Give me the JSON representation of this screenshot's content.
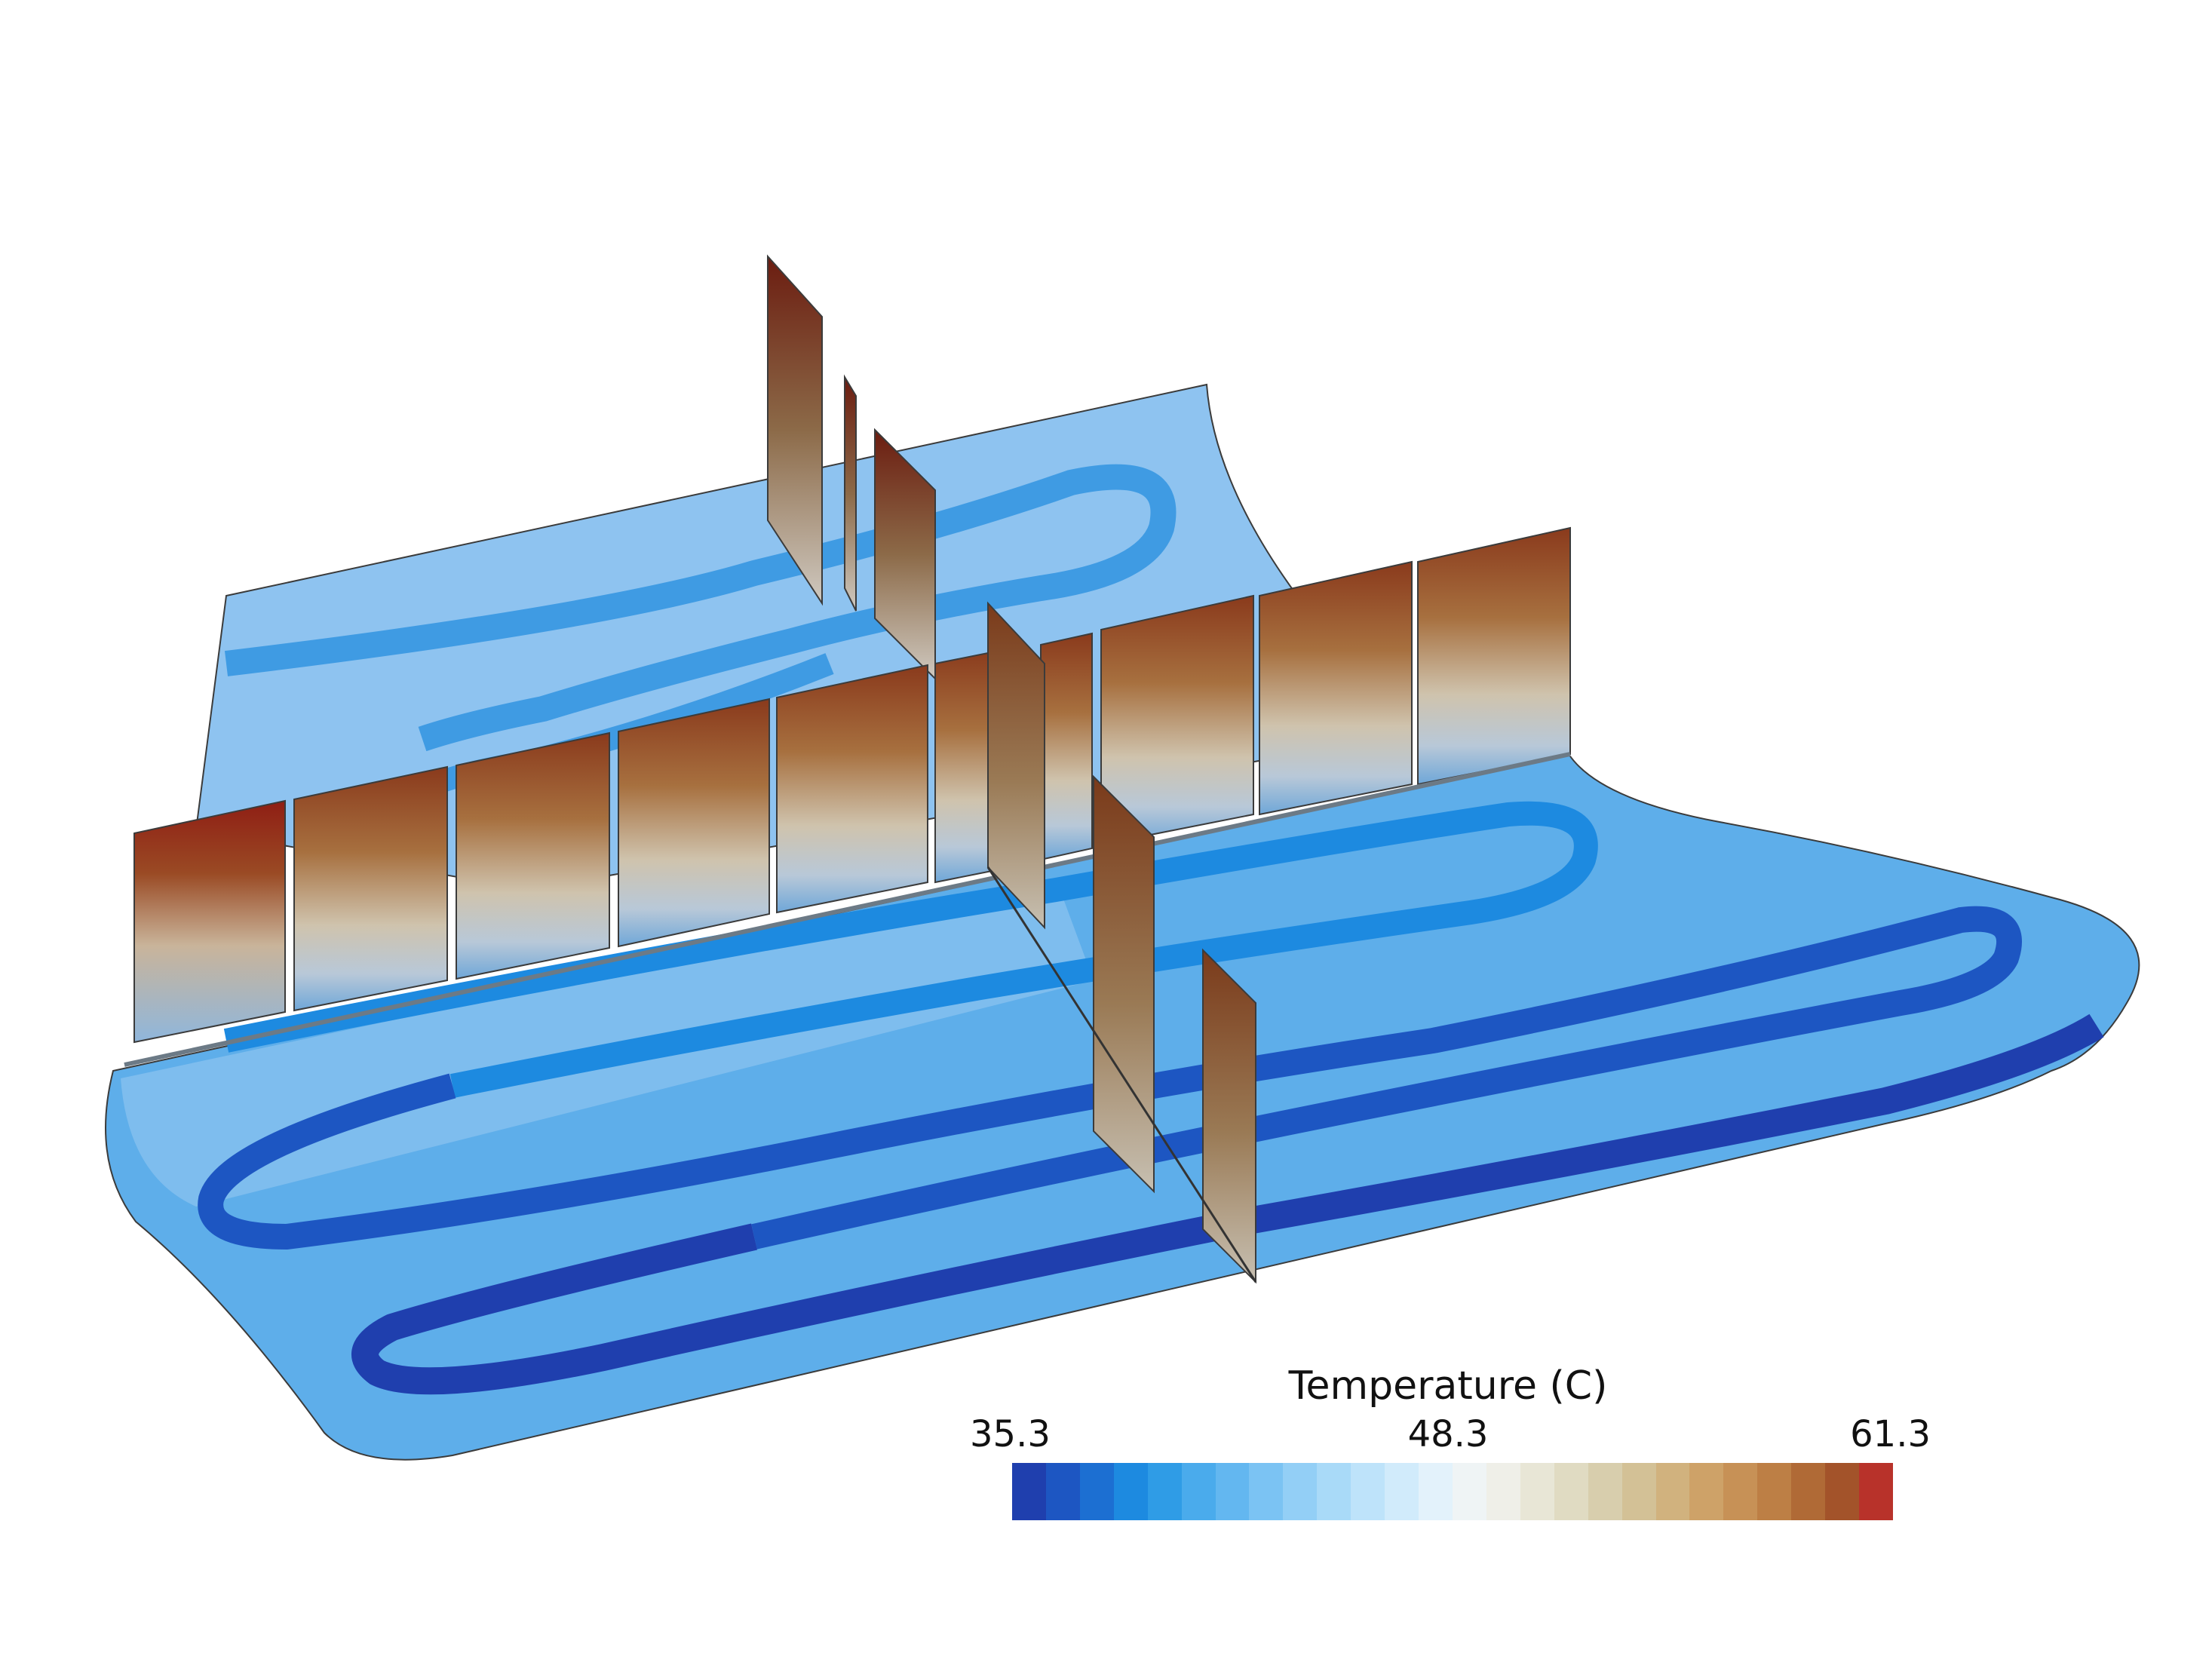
{
  "legend": {
    "title": "Temperature (C)",
    "min_label": "35.3",
    "mid_label": "48.3",
    "max_label": "61.3",
    "min_value": 35.3,
    "mid_value": 48.3,
    "max_value": 61.3
  },
  "colormap": [
    "#1f3fae",
    "#1d56c2",
    "#1c6fd2",
    "#1d8ae0",
    "#2f9ce6",
    "#4aabec",
    "#63b7f0",
    "#7bc3f3",
    "#93cff6",
    "#a9daf8",
    "#bee3fa",
    "#d1ebfb",
    "#e3f2fb",
    "#eff4f5",
    "#efefe8",
    "#e8e6d6",
    "#e0dbc2",
    "#d8cead",
    "#d3c196",
    "#d1b27e",
    "#ceA268",
    "#c79156",
    "#bd7f45",
    "#b06a36",
    "#a3532a",
    "#b8322a"
  ],
  "colors": {
    "surface_light": "#8ec3f0",
    "surface_mid": "#3f9be3",
    "channel_dark": "#1e48b8",
    "panel_hot": "#8b2a18",
    "panel_cool": "#d7dbe0",
    "edge": "#3b3b3b"
  }
}
